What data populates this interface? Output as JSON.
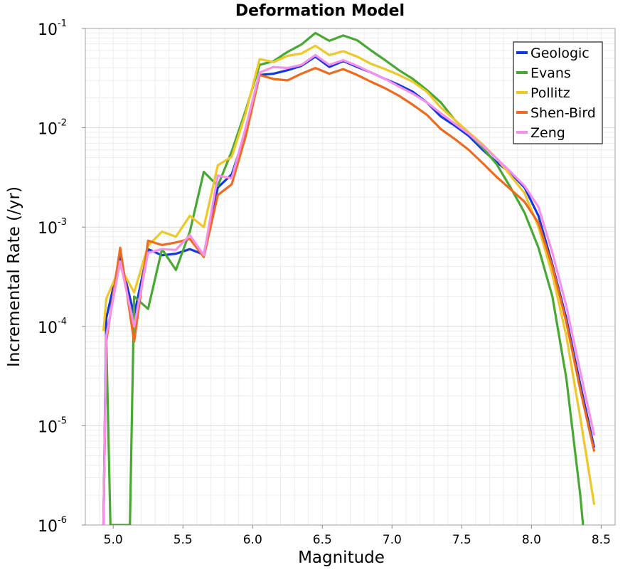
{
  "chart_data": {
    "type": "line",
    "title": "Deformation Model",
    "xlabel": "Magnitude",
    "ylabel": "Incremental Rate (/yr)",
    "xlim": [
      4.8,
      8.6
    ],
    "ylim": [
      1e-06,
      0.1
    ],
    "yscale": "log",
    "grid": true,
    "legend_position": "top-right",
    "x_ticks": [
      "5.0",
      "5.5",
      "6.0",
      "6.5",
      "7.0",
      "7.5",
      "8.0",
      "8.5"
    ],
    "y_ticks": [
      {
        "base": "10",
        "exp": "-6"
      },
      {
        "base": "10",
        "exp": "-5"
      },
      {
        "base": "10",
        "exp": "-4"
      },
      {
        "base": "10",
        "exp": "-3"
      },
      {
        "base": "10",
        "exp": "-2"
      },
      {
        "base": "10",
        "exp": "-1"
      }
    ],
    "series": [
      {
        "name": "Geologic",
        "color": "#1238e0",
        "points": [
          [
            4.93,
            1e-06
          ],
          [
            4.95,
            0.00012
          ],
          [
            5.05,
            0.0005
          ],
          [
            5.15,
            0.00013
          ],
          [
            5.25,
            0.0006
          ],
          [
            5.35,
            0.00052
          ],
          [
            5.45,
            0.00054
          ],
          [
            5.55,
            0.0006
          ],
          [
            5.65,
            0.00053
          ],
          [
            5.75,
            0.0025
          ],
          [
            5.85,
            0.0034
          ],
          [
            5.95,
            0.009
          ],
          [
            6.05,
            0.034
          ],
          [
            6.15,
            0.035
          ],
          [
            6.25,
            0.038
          ],
          [
            6.35,
            0.042
          ],
          [
            6.45,
            0.052
          ],
          [
            6.55,
            0.041
          ],
          [
            6.65,
            0.047
          ],
          [
            6.75,
            0.041
          ],
          [
            6.85,
            0.036
          ],
          [
            6.95,
            0.031
          ],
          [
            7.05,
            0.027
          ],
          [
            7.15,
            0.023
          ],
          [
            7.25,
            0.018
          ],
          [
            7.35,
            0.013
          ],
          [
            7.45,
            0.0105
          ],
          [
            7.55,
            0.0083
          ],
          [
            7.65,
            0.006
          ],
          [
            7.75,
            0.0045
          ],
          [
            7.85,
            0.0035
          ],
          [
            7.95,
            0.0025
          ],
          [
            8.05,
            0.0013
          ],
          [
            8.15,
            0.00042
          ],
          [
            8.25,
            0.00012
          ],
          [
            8.35,
            2.6e-05
          ],
          [
            8.45,
            6e-06
          ]
        ]
      },
      {
        "name": "Evans",
        "color": "#47a832",
        "points": [
          [
            4.93,
            1e-06
          ],
          [
            4.95,
            8e-05
          ],
          [
            4.98,
            1e-06
          ],
          [
            5.12,
            1e-06
          ],
          [
            5.15,
            0.0002
          ],
          [
            5.25,
            0.00015
          ],
          [
            5.35,
            0.0006
          ],
          [
            5.45,
            0.00037
          ],
          [
            5.55,
            0.0009
          ],
          [
            5.65,
            0.0036
          ],
          [
            5.75,
            0.0026
          ],
          [
            5.85,
            0.0058
          ],
          [
            5.95,
            0.015
          ],
          [
            6.05,
            0.043
          ],
          [
            6.15,
            0.047
          ],
          [
            6.25,
            0.058
          ],
          [
            6.35,
            0.069
          ],
          [
            6.45,
            0.09
          ],
          [
            6.55,
            0.075
          ],
          [
            6.65,
            0.085
          ],
          [
            6.75,
            0.076
          ],
          [
            6.85,
            0.06
          ],
          [
            6.95,
            0.048
          ],
          [
            7.05,
            0.038
          ],
          [
            7.15,
            0.031
          ],
          [
            7.25,
            0.024
          ],
          [
            7.35,
            0.018
          ],
          [
            7.45,
            0.012
          ],
          [
            7.55,
            0.0088
          ],
          [
            7.65,
            0.0063
          ],
          [
            7.75,
            0.0043
          ],
          [
            7.85,
            0.0025
          ],
          [
            7.95,
            0.0014
          ],
          [
            8.05,
            0.00062
          ],
          [
            8.15,
            0.0002
          ],
          [
            8.25,
            3e-05
          ],
          [
            8.35,
            2e-06
          ],
          [
            8.37,
            1e-06
          ]
        ]
      },
      {
        "name": "Pollitz",
        "color": "#eec829",
        "points": [
          [
            4.93,
            9e-05
          ],
          [
            4.95,
            0.00019
          ],
          [
            5.05,
            0.0004
          ],
          [
            5.15,
            0.00022
          ],
          [
            5.25,
            0.00065
          ],
          [
            5.35,
            0.0009
          ],
          [
            5.45,
            0.0008
          ],
          [
            5.55,
            0.0013
          ],
          [
            5.65,
            0.001
          ],
          [
            5.75,
            0.0042
          ],
          [
            5.85,
            0.0051
          ],
          [
            5.95,
            0.014
          ],
          [
            6.05,
            0.049
          ],
          [
            6.15,
            0.046
          ],
          [
            6.25,
            0.053
          ],
          [
            6.35,
            0.056
          ],
          [
            6.45,
            0.067
          ],
          [
            6.55,
            0.054
          ],
          [
            6.65,
            0.059
          ],
          [
            6.75,
            0.052
          ],
          [
            6.85,
            0.044
          ],
          [
            6.95,
            0.039
          ],
          [
            7.05,
            0.034
          ],
          [
            7.15,
            0.029
          ],
          [
            7.25,
            0.023
          ],
          [
            7.35,
            0.016
          ],
          [
            7.45,
            0.012
          ],
          [
            7.55,
            0.009
          ],
          [
            7.65,
            0.0068
          ],
          [
            7.75,
            0.0049
          ],
          [
            7.85,
            0.0033
          ],
          [
            7.95,
            0.0022
          ],
          [
            8.05,
            0.001
          ],
          [
            8.15,
            0.00033
          ],
          [
            8.25,
            8e-05
          ],
          [
            8.35,
            1.2e-05
          ],
          [
            8.45,
            1.6e-06
          ]
        ]
      },
      {
        "name": "Shen-Bird",
        "color": "#ee6a1e",
        "points": [
          [
            4.93,
            1e-06
          ],
          [
            4.95,
            7e-05
          ],
          [
            5.05,
            0.00062
          ],
          [
            5.15,
            7e-05
          ],
          [
            5.25,
            0.00073
          ],
          [
            5.35,
            0.00066
          ],
          [
            5.45,
            0.0007
          ],
          [
            5.55,
            0.00076
          ],
          [
            5.65,
            0.0005
          ],
          [
            5.75,
            0.0021
          ],
          [
            5.85,
            0.0027
          ],
          [
            5.95,
            0.0082
          ],
          [
            6.05,
            0.034
          ],
          [
            6.15,
            0.031
          ],
          [
            6.25,
            0.03
          ],
          [
            6.35,
            0.035
          ],
          [
            6.45,
            0.04
          ],
          [
            6.55,
            0.035
          ],
          [
            6.65,
            0.039
          ],
          [
            6.75,
            0.034
          ],
          [
            6.85,
            0.029
          ],
          [
            6.95,
            0.025
          ],
          [
            7.05,
            0.021
          ],
          [
            7.15,
            0.017
          ],
          [
            7.25,
            0.0135
          ],
          [
            7.35,
            0.0097
          ],
          [
            7.45,
            0.0077
          ],
          [
            7.55,
            0.006
          ],
          [
            7.65,
            0.0044
          ],
          [
            7.75,
            0.0032
          ],
          [
            7.85,
            0.0024
          ],
          [
            7.95,
            0.0018
          ],
          [
            8.05,
            0.0011
          ],
          [
            8.15,
            0.0004
          ],
          [
            8.25,
            0.00011
          ],
          [
            8.35,
            2.3e-05
          ],
          [
            8.45,
            5.5e-06
          ]
        ]
      },
      {
        "name": "Zeng",
        "color": "#f591ea",
        "points": [
          [
            4.93,
            1e-06
          ],
          [
            4.95,
            8e-05
          ],
          [
            5.05,
            0.00045
          ],
          [
            5.15,
            0.0001
          ],
          [
            5.25,
            0.00055
          ],
          [
            5.35,
            0.0006
          ],
          [
            5.45,
            0.00059
          ],
          [
            5.55,
            0.00083
          ],
          [
            5.65,
            0.00052
          ],
          [
            5.75,
            0.0033
          ],
          [
            5.85,
            0.0031
          ],
          [
            5.95,
            0.01
          ],
          [
            6.05,
            0.036
          ],
          [
            6.15,
            0.041
          ],
          [
            6.25,
            0.04
          ],
          [
            6.35,
            0.043
          ],
          [
            6.45,
            0.054
          ],
          [
            6.55,
            0.043
          ],
          [
            6.65,
            0.048
          ],
          [
            6.75,
            0.042
          ],
          [
            6.85,
            0.036
          ],
          [
            6.95,
            0.031
          ],
          [
            7.05,
            0.026
          ],
          [
            7.15,
            0.022
          ],
          [
            7.25,
            0.018
          ],
          [
            7.35,
            0.014
          ],
          [
            7.45,
            0.011
          ],
          [
            7.55,
            0.0087
          ],
          [
            7.65,
            0.0066
          ],
          [
            7.75,
            0.0049
          ],
          [
            7.85,
            0.0036
          ],
          [
            7.95,
            0.0026
          ],
          [
            8.05,
            0.0016
          ],
          [
            8.15,
            0.00055
          ],
          [
            8.25,
            0.00016
          ],
          [
            8.35,
            3.5e-05
          ],
          [
            8.45,
            8e-06
          ]
        ]
      }
    ]
  }
}
